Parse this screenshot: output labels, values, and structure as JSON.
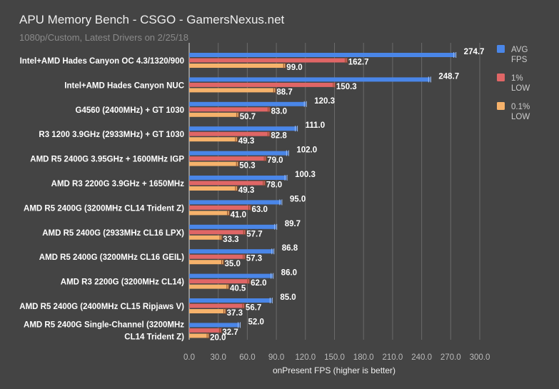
{
  "chart_data": {
    "type": "bar",
    "orientation": "horizontal",
    "title": "APU Memory Bench - CSGO - GamersNexus.net",
    "subtitle": "1080p/Custom, Latest Drivers on 2/25/18",
    "xlabel": "onPresent FPS (higher is better)",
    "xlim": [
      0,
      300
    ],
    "xticks": [
      "0.0",
      "30.0",
      "60.0",
      "90.0",
      "120.0",
      "150.0",
      "180.0",
      "210.0",
      "240.0",
      "270.0",
      "300.0"
    ],
    "grid": true,
    "legend_position": "right",
    "categories": [
      [
        "Intel+AMD Hades Canyon OC 4.3/1320/900"
      ],
      [
        "Intel+AMD Hades Canyon NUC"
      ],
      [
        "G4560 (2400MHz) + GT 1030"
      ],
      [
        "R3 1200 3.9GHz (2933MHz) + GT 1030"
      ],
      [
        "AMD R5 2400G 3.95GHz + 1600MHz IGP"
      ],
      [
        "AMD R3 2200G 3.9GHz + 1650MHz"
      ],
      [
        "AMD R5 2400G (3200MHz CL14 Trident Z)"
      ],
      [
        "AMD R5 2400G (2933MHz CL16 LPX)"
      ],
      [
        "AMD R5 2400G (3200MHz CL16 GEIL)"
      ],
      [
        "AMD R3 2200G (3200MHz CL14)"
      ],
      [
        "AMD R5 2400G (2400MHz CL15 Ripjaws V)"
      ],
      [
        "AMD R5 2400G Single-Channel (3200MHz",
        "CL14 Trident Z)"
      ]
    ],
    "series": [
      {
        "name": "AVG FPS",
        "legend": [
          "AVG",
          "FPS"
        ],
        "color": "#4a86e8",
        "values": [
          274.7,
          248.7,
          120.3,
          111.0,
          102.0,
          100.3,
          95.0,
          89.7,
          86.8,
          86.0,
          85.0,
          52.0
        ]
      },
      {
        "name": "1% LOW",
        "legend": [
          "1%",
          "LOW"
        ],
        "color": "#e06666",
        "values": [
          162.7,
          150.3,
          83.0,
          82.8,
          79.0,
          78.0,
          63.0,
          57.7,
          57.3,
          62.0,
          56.7,
          32.7
        ]
      },
      {
        "name": "0.1% LOW",
        "legend": [
          "0.1%",
          "LOW"
        ],
        "color": "#f6b26b",
        "values": [
          99.0,
          88.7,
          50.7,
          49.3,
          50.3,
          49.3,
          41.0,
          33.3,
          35.0,
          40.5,
          37.3,
          20.0
        ]
      }
    ]
  }
}
